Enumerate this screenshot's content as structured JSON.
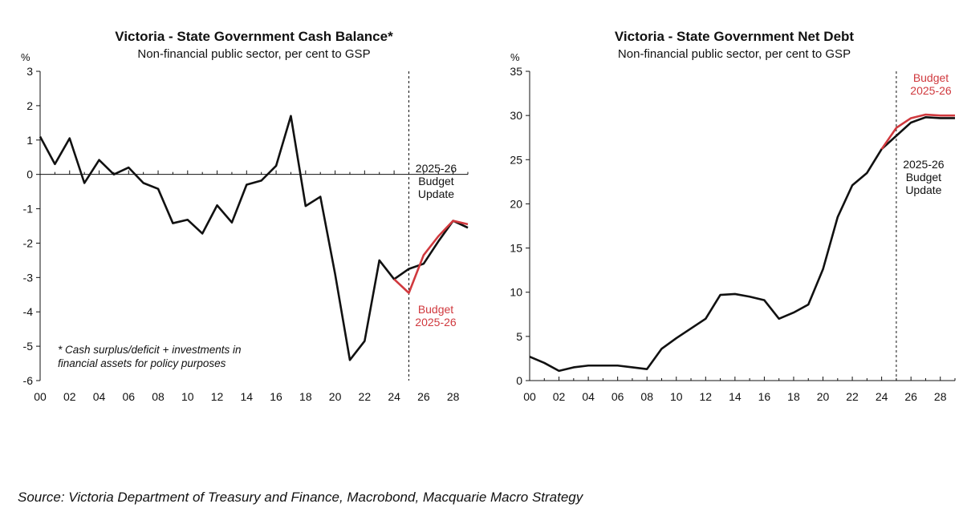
{
  "colors": {
    "actual": "#111111",
    "budget": "#d0393e"
  },
  "source": "Source: Victoria Department of Treasury and Finance, Macrobond, Macquarie Macro Strategy",
  "chart_data": [
    {
      "type": "line",
      "title": "Victoria - State Government Cash Balance*",
      "subtitle": "Non-financial public sector, per cent to GSP",
      "ylabel": "%",
      "ylim": [
        -6,
        3
      ],
      "yticks": [
        3,
        2,
        1,
        0,
        -1,
        -2,
        -3,
        -4,
        -5,
        -6
      ],
      "xlim": [
        2000,
        2029
      ],
      "xtick_labels": [
        "00",
        "02",
        "04",
        "06",
        "08",
        "10",
        "12",
        "14",
        "16",
        "18",
        "20",
        "22",
        "24",
        "26",
        "28"
      ],
      "grid": false,
      "zero_line": true,
      "footnote": [
        "* Cash surplus/deficit + investments in",
        "financial assets for policy purposes"
      ],
      "divider_x": 2025,
      "divider_label": [
        "2025-26",
        "Budget",
        "Update"
      ],
      "budget_label": [
        "Budget",
        "2025-26"
      ],
      "series": [
        {
          "name": "2025-26 Budget Update",
          "color": "#111111",
          "x": [
            2000,
            2001,
            2002,
            2003,
            2004,
            2005,
            2006,
            2007,
            2008,
            2009,
            2010,
            2011,
            2012,
            2013,
            2014,
            2015,
            2016,
            2017,
            2018,
            2019,
            2020,
            2021,
            2022,
            2023,
            2024,
            2025,
            2026,
            2027,
            2028,
            2029
          ],
          "y": [
            1.1,
            0.3,
            1.05,
            -0.25,
            0.42,
            0.0,
            0.2,
            -0.25,
            -0.42,
            -1.42,
            -1.32,
            -1.72,
            -0.9,
            -1.4,
            -0.3,
            -0.18,
            0.25,
            1.7,
            -0.92,
            -0.65,
            -2.9,
            -5.4,
            -4.85,
            -2.5,
            -3.05,
            -2.75,
            -2.6,
            -1.95,
            -1.35,
            -1.55
          ]
        },
        {
          "name": "Budget 2025-26",
          "color": "#d0393e",
          "x": [
            2024,
            2025,
            2026,
            2027,
            2028,
            2029
          ],
          "y": [
            -3.05,
            -3.45,
            -2.35,
            -1.8,
            -1.35,
            -1.45
          ]
        }
      ]
    },
    {
      "type": "line",
      "title": "Victoria - State Government Net Debt",
      "subtitle": "Non-financial public sector, per cent to GSP",
      "ylabel": "%",
      "ylim": [
        0,
        35
      ],
      "yticks": [
        35,
        30,
        25,
        20,
        15,
        10,
        5,
        0
      ],
      "xlim": [
        2000,
        2029
      ],
      "xtick_labels": [
        "00",
        "02",
        "04",
        "06",
        "08",
        "10",
        "12",
        "14",
        "16",
        "18",
        "20",
        "22",
        "24",
        "26",
        "28"
      ],
      "grid": false,
      "divider_x": 2025,
      "divider_label": [
        "2025-26",
        "Budget",
        "Update"
      ],
      "budget_label": [
        "Budget",
        "2025-26"
      ],
      "series": [
        {
          "name": "2025-26 Budget Update",
          "color": "#111111",
          "x": [
            2000,
            2001,
            2002,
            2003,
            2004,
            2005,
            2006,
            2007,
            2008,
            2009,
            2010,
            2011,
            2012,
            2013,
            2014,
            2015,
            2016,
            2017,
            2018,
            2019,
            2020,
            2021,
            2022,
            2023,
            2024,
            2025,
            2026,
            2027,
            2028,
            2029
          ],
          "y": [
            2.7,
            2.0,
            1.1,
            1.5,
            1.7,
            1.7,
            1.7,
            1.5,
            1.3,
            3.6,
            4.8,
            5.9,
            7.0,
            9.7,
            9.8,
            9.5,
            9.1,
            7.0,
            7.7,
            8.6,
            12.6,
            18.5,
            22.1,
            23.5,
            26.2,
            27.7,
            29.2,
            29.8,
            29.7,
            29.7
          ]
        },
        {
          "name": "Budget 2025-26",
          "color": "#d0393e",
          "x": [
            2024,
            2025,
            2026,
            2027,
            2028,
            2029
          ],
          "y": [
            26.2,
            28.6,
            29.7,
            30.1,
            30.0,
            30.0
          ]
        }
      ]
    }
  ]
}
